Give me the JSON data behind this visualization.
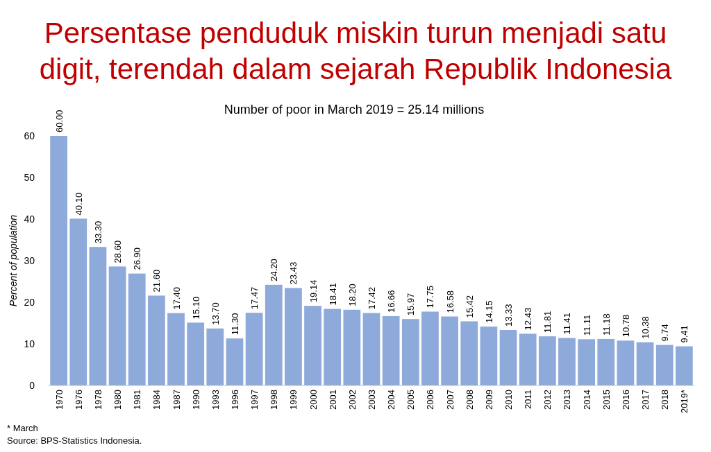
{
  "chart_data": {
    "type": "bar",
    "title": "Persentase penduduk miskin turun menjadi satu digit, terendah dalam sejarah Republik Indonesia",
    "subtitle": "Number of poor in March 2019 = 25.14 millions",
    "ylabel": "Percent of population",
    "categories": [
      "1970",
      "1976",
      "1978",
      "1980",
      "1981",
      "1984",
      "1987",
      "1990",
      "1993",
      "1996",
      "1997",
      "1998",
      "1999",
      "2000",
      "2001",
      "2002",
      "2003",
      "2004",
      "2005",
      "2006",
      "2007",
      "2008",
      "2009",
      "2010",
      "2011",
      "2012",
      "2013",
      "2014",
      "2015",
      "2016",
      "2017",
      "2018",
      "2019*"
    ],
    "values": [
      60.0,
      40.1,
      33.3,
      28.6,
      26.9,
      21.6,
      17.4,
      15.1,
      13.7,
      11.3,
      17.47,
      24.2,
      23.43,
      19.14,
      18.41,
      18.2,
      17.42,
      16.66,
      15.97,
      17.75,
      16.58,
      15.42,
      14.15,
      13.33,
      12.43,
      11.81,
      11.41,
      11.11,
      11.18,
      10.78,
      10.38,
      9.74,
      9.41
    ],
    "value_labels": [
      "60.00",
      "40.10",
      "33.30",
      "28.60",
      "26.90",
      "21.60",
      "17.40",
      "15.10",
      "13.70",
      "11.30",
      "17.47",
      "24.20",
      "23.43",
      "19.14",
      "18.41",
      "18.20",
      "17.42",
      "16.66",
      "15.97",
      "17.75",
      "16.58",
      "15.42",
      "14.15",
      "13.33",
      "12.43",
      "11.81",
      "11.41",
      "11.11",
      "11.18",
      "10.78",
      "10.38",
      "9.74",
      "9.41"
    ],
    "color": "#8eaadb",
    "ylim": [
      0,
      60
    ],
    "yticks": [
      0,
      10,
      20,
      30,
      40,
      50,
      60
    ],
    "grid": false,
    "annotations": [
      "* March",
      "Source: BPS-Statistics Indonesia."
    ]
  }
}
